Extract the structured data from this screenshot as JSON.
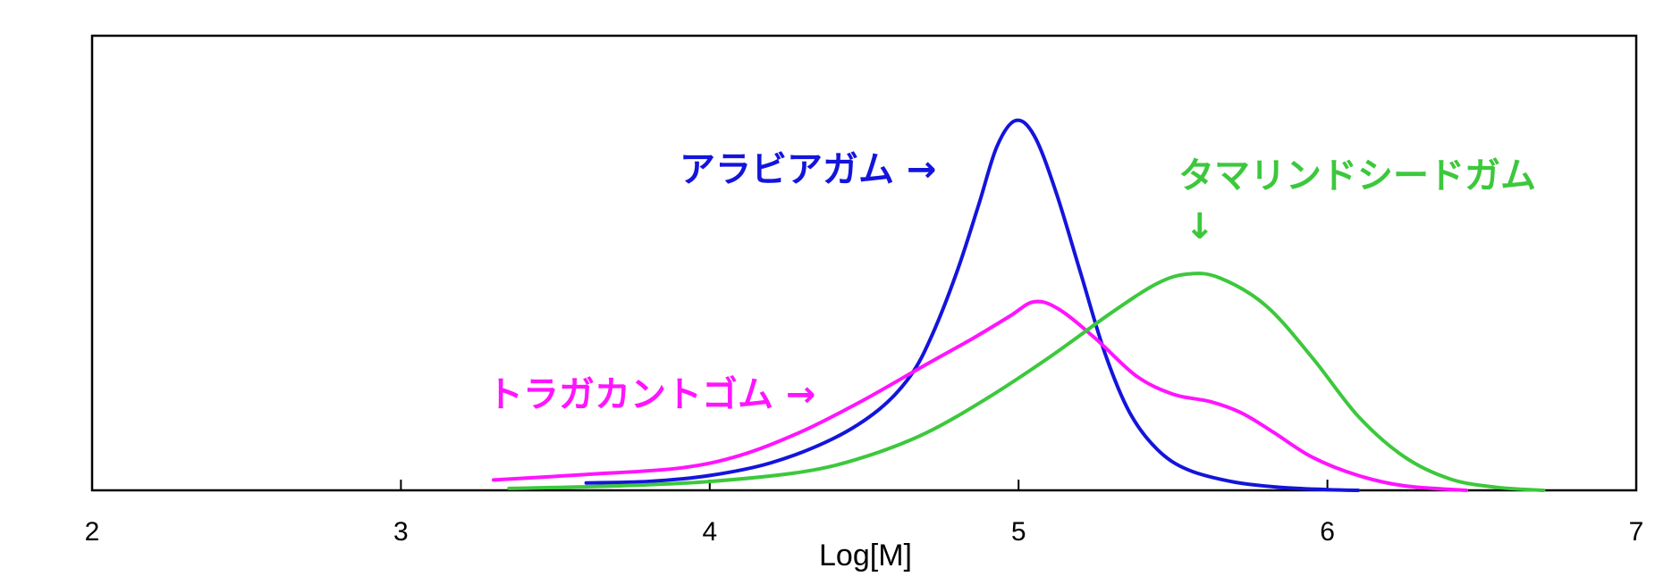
{
  "chart_data": {
    "type": "line",
    "xlabel": "Log[M]",
    "ylabel": "",
    "xlim": [
      2,
      7
    ],
    "ylim": [
      0,
      1
    ],
    "x_ticks": [
      2,
      3,
      4,
      5,
      6,
      7
    ],
    "x_tick_labels": [
      "2",
      "3",
      "4",
      "5",
      "6",
      "7"
    ],
    "y_ticks_shown": false,
    "grid": false,
    "series": [
      {
        "name": "アラビアガム",
        "color": "#1414dc",
        "points": [
          [
            3.6,
            0.02
          ],
          [
            3.8,
            0.024
          ],
          [
            4.0,
            0.04
          ],
          [
            4.2,
            0.075
          ],
          [
            4.4,
            0.14
          ],
          [
            4.55,
            0.22
          ],
          [
            4.65,
            0.31
          ],
          [
            4.72,
            0.42
          ],
          [
            4.8,
            0.59
          ],
          [
            4.87,
            0.77
          ],
          [
            4.93,
            0.93
          ],
          [
            4.99,
            1.0
          ],
          [
            5.05,
            0.96
          ],
          [
            5.12,
            0.81
          ],
          [
            5.2,
            0.59
          ],
          [
            5.28,
            0.37
          ],
          [
            5.36,
            0.21
          ],
          [
            5.45,
            0.11
          ],
          [
            5.55,
            0.055
          ],
          [
            5.7,
            0.022
          ],
          [
            5.85,
            0.008
          ],
          [
            6.0,
            0.002
          ],
          [
            6.1,
            0.0
          ]
        ]
      },
      {
        "name": "トラガカントゴム",
        "color": "#ff14ff",
        "points": [
          [
            3.3,
            0.028
          ],
          [
            3.6,
            0.043
          ],
          [
            3.9,
            0.06
          ],
          [
            4.1,
            0.095
          ],
          [
            4.3,
            0.16
          ],
          [
            4.5,
            0.245
          ],
          [
            4.7,
            0.34
          ],
          [
            4.85,
            0.41
          ],
          [
            4.97,
            0.47
          ],
          [
            5.05,
            0.51
          ],
          [
            5.13,
            0.49
          ],
          [
            5.25,
            0.41
          ],
          [
            5.38,
            0.31
          ],
          [
            5.5,
            0.26
          ],
          [
            5.62,
            0.24
          ],
          [
            5.72,
            0.21
          ],
          [
            5.82,
            0.16
          ],
          [
            5.95,
            0.09
          ],
          [
            6.1,
            0.04
          ],
          [
            6.25,
            0.012
          ],
          [
            6.45,
            0.0
          ]
        ]
      },
      {
        "name": "タマリンドシードガム",
        "color": "#3cc83c",
        "points": [
          [
            3.35,
            0.005
          ],
          [
            3.7,
            0.012
          ],
          [
            4.0,
            0.024
          ],
          [
            4.3,
            0.05
          ],
          [
            4.5,
            0.09
          ],
          [
            4.7,
            0.155
          ],
          [
            4.9,
            0.25
          ],
          [
            5.1,
            0.36
          ],
          [
            5.3,
            0.48
          ],
          [
            5.45,
            0.56
          ],
          [
            5.55,
            0.585
          ],
          [
            5.65,
            0.575
          ],
          [
            5.8,
            0.5
          ],
          [
            5.95,
            0.36
          ],
          [
            6.1,
            0.2
          ],
          [
            6.25,
            0.09
          ],
          [
            6.4,
            0.03
          ],
          [
            6.55,
            0.008
          ],
          [
            6.7,
            0.0
          ]
        ]
      }
    ],
    "annotations": [
      {
        "text": "アラビアガム →",
        "series": "アラビアガム",
        "color": "#1414dc"
      },
      {
        "text": "トラガカントゴム →",
        "series": "トラガカントゴム",
        "color": "#ff14ff"
      },
      {
        "text": "タマリンドシードガム",
        "series": "タマリンドシードガム",
        "color": "#3cc83c"
      },
      {
        "text": "↓",
        "series": "タマリンドシードガム",
        "color": "#3cc83c"
      }
    ]
  }
}
